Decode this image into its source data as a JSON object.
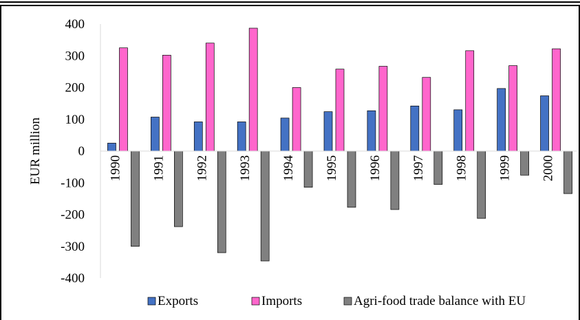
{
  "chart_data": {
    "type": "bar",
    "title": "",
    "xlabel": "",
    "ylabel": "EUR million",
    "ylim": [
      -400,
      400
    ],
    "yticks": [
      400,
      300,
      200,
      100,
      0,
      -100,
      -200,
      -300,
      -400
    ],
    "grid": false,
    "legend_position": "bottom",
    "categories": [
      "1990",
      "1991",
      "1992",
      "1993",
      "1994",
      "1995",
      "1996",
      "1997",
      "1998",
      "1999",
      "2000"
    ],
    "series": [
      {
        "name": "Exports",
        "color": "#4472C4",
        "values": [
          25,
          107,
          92,
          92,
          104,
          124,
          127,
          142,
          130,
          197,
          174
        ]
      },
      {
        "name": "Imports",
        "color": "#FF66CC",
        "values": [
          325,
          302,
          340,
          387,
          200,
          258,
          267,
          232,
          316,
          269,
          322
        ]
      },
      {
        "name": "Agri-food trade balance with EU",
        "color": "#808080",
        "values": [
          -300,
          -238,
          -320,
          -346,
          -114,
          -177,
          -184,
          -105,
          -212,
          -76,
          -134
        ]
      }
    ]
  }
}
